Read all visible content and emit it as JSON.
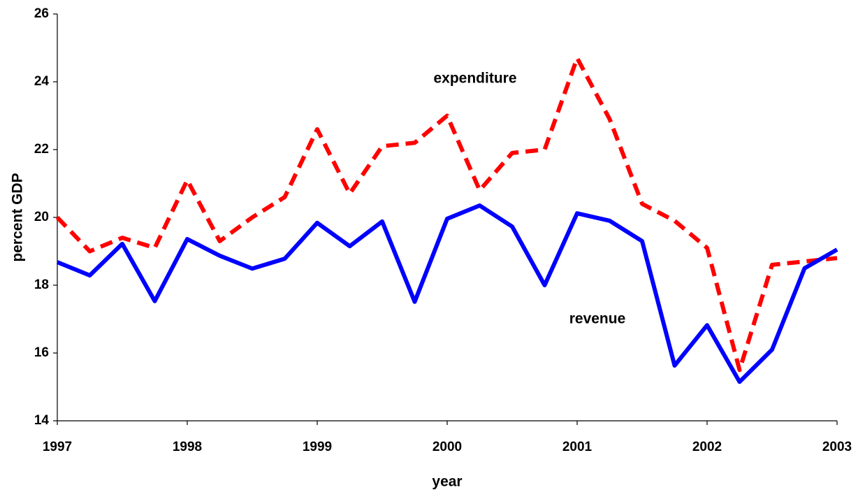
{
  "chart_data": {
    "type": "line",
    "x_label": "year",
    "y_label": "percent GDP",
    "x": [
      1997,
      1997.25,
      1997.5,
      1997.75,
      1998,
      1998.25,
      1998.5,
      1998.75,
      1999,
      1999.25,
      1999.5,
      1999.75,
      2000,
      2000.25,
      2000.5,
      2000.75,
      2001,
      2001.25,
      2001.5,
      2001.75,
      2002,
      2002.25,
      2002.5,
      2002.75,
      2003
    ],
    "series": [
      {
        "name": "expenditure",
        "color": "#ff0000",
        "dash": true,
        "values": [
          20.0,
          19.0,
          19.4,
          19.1,
          21.1,
          19.3,
          20.0,
          20.6,
          22.6,
          20.7,
          22.1,
          22.2,
          23.0,
          20.8,
          21.9,
          22.0,
          24.7,
          22.9,
          20.4,
          19.9,
          19.1,
          15.5,
          18.6,
          18.7,
          18.8
        ]
      },
      {
        "name": "revenue",
        "color": "#0000ff",
        "dash": false,
        "values": [
          18.68,
          18.29,
          19.22,
          17.53,
          19.36,
          18.87,
          18.49,
          18.78,
          19.84,
          19.15,
          19.88,
          17.51,
          19.96,
          20.35,
          19.73,
          18.0,
          20.12,
          19.9,
          19.3,
          15.63,
          16.82,
          15.15,
          16.1,
          18.5,
          19.05
        ]
      }
    ],
    "xlim": [
      1997,
      2003
    ],
    "xticks": [
      1997,
      1998,
      1999,
      2000,
      2001,
      2002,
      2003
    ],
    "ylim": [
      14,
      26
    ],
    "yticks": [
      14,
      16,
      18,
      20,
      22,
      24,
      26
    ],
    "grid": false
  }
}
